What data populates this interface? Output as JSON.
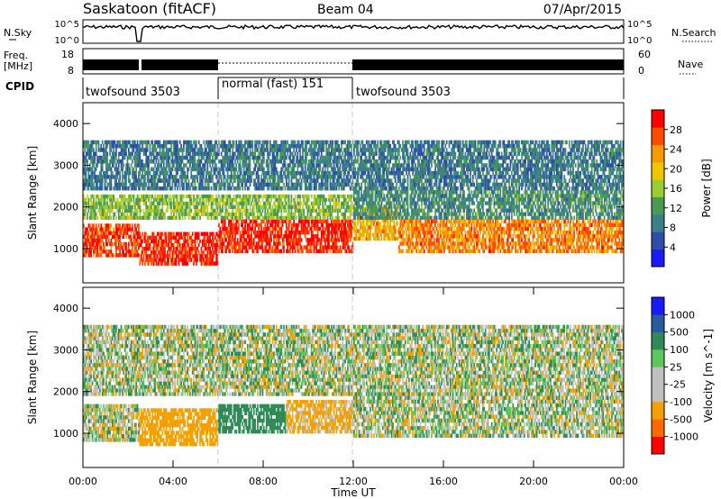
{
  "header": {
    "station": "Saskatoon (fitACF)",
    "beam": "Beam 04",
    "date": "07/Apr/2015"
  },
  "strips": {
    "noise": {
      "left_label": "N.Sky",
      "right_label": "N.Search",
      "left_ticks": [
        "10^5",
        "10^0"
      ],
      "right_ticks": [
        "10^5",
        "10^0"
      ]
    },
    "freq": {
      "left_label_1": "Freq.",
      "left_label_2": "[MHz]",
      "left_ticks": [
        "18",
        "8"
      ],
      "right_label": "Nave",
      "right_ticks": [
        "60",
        "0"
      ]
    },
    "cpid": {
      "label": "CPID",
      "segments": [
        {
          "text": "twofsound 3503",
          "start": 0.0,
          "end": 6.0
        },
        {
          "text": "normal (fast) 151",
          "start": 6.0,
          "end": 12.0
        },
        {
          "text": "twofsound 3503",
          "start": 12.0,
          "end": 24.0
        }
      ]
    }
  },
  "chart_data": [
    {
      "type": "heatmap",
      "title": "",
      "xlabel": "",
      "ylabel": "Slant Range [km]",
      "quantity": "Power",
      "colorbar_label": "Power [dB]",
      "colorbar_ticks": [
        "4",
        "8",
        "12",
        "16",
        "20",
        "24",
        "28"
      ],
      "colorbar_range": [
        0,
        30
      ],
      "colorbar_colors": [
        "#1a1aff",
        "#2e4fa8",
        "#3b7f8a",
        "#4a9a55",
        "#9acd32",
        "#f2c300",
        "#f59a00",
        "#ff4a00",
        "#ff0000"
      ],
      "ylim": [
        180,
        4500
      ],
      "xlim": [
        0,
        24
      ],
      "y_ticks": [
        1000,
        2000,
        3000,
        4000
      ],
      "bands": [
        {
          "t0": 0.0,
          "t1": 2.5,
          "r0": 800,
          "r1": 1600,
          "power": 26
        },
        {
          "t0": 2.5,
          "t1": 6.0,
          "r0": 600,
          "r1": 1400,
          "power": 27
        },
        {
          "t0": 6.0,
          "t1": 12.0,
          "r0": 900,
          "r1": 1700,
          "power": 27
        },
        {
          "t0": 12.0,
          "t1": 14.0,
          "r0": 1200,
          "r1": 2000,
          "power": 20
        },
        {
          "t0": 14.0,
          "t1": 24.0,
          "r0": 900,
          "r1": 1700,
          "power": 23
        },
        {
          "t0": 0.0,
          "t1": 12.0,
          "r0": 1700,
          "r1": 2300,
          "power": 14
        },
        {
          "t0": 12.0,
          "t1": 24.0,
          "r0": 1700,
          "r1": 2400,
          "power": 10
        },
        {
          "t0": 0.0,
          "t1": 24.0,
          "r0": 2400,
          "r1": 3600,
          "power": 8
        }
      ]
    },
    {
      "type": "heatmap",
      "title": "",
      "xlabel": "Time UT",
      "ylabel": "Slant Range [km]",
      "quantity": "Velocity",
      "colorbar_label": "Velocity [m s^-1]",
      "colorbar_ticks": [
        "-1000",
        "-500",
        "-100",
        "-25",
        "25",
        "100",
        "500",
        "1000"
      ],
      "colorbar_range": [
        -1200,
        1200
      ],
      "colorbar_colors": [
        "#ff0000",
        "#ff6a00",
        "#f5a000",
        "#c0c0c0",
        "#c0c0c0",
        "#5ac85a",
        "#2e8b57",
        "#2a5a9e",
        "#1a1aff"
      ],
      "ylim": [
        180,
        4500
      ],
      "xlim": [
        0,
        24
      ],
      "y_ticks": [
        1000,
        2000,
        3000,
        4000
      ],
      "x_ticks": [
        "00:00",
        "04:00",
        "08:00",
        "12:00",
        "16:00",
        "20:00",
        "00:00"
      ],
      "bands": [
        {
          "t0": 0.0,
          "t1": 2.5,
          "r0": 800,
          "r1": 1700,
          "velocity": -20
        },
        {
          "t0": 2.5,
          "t1": 6.0,
          "r0": 700,
          "r1": 1600,
          "velocity": -300
        },
        {
          "t0": 6.0,
          "t1": 9.0,
          "r0": 1000,
          "r1": 1700,
          "velocity": 300
        },
        {
          "t0": 9.0,
          "t1": 12.0,
          "r0": 1000,
          "r1": 1800,
          "velocity": -200
        },
        {
          "t0": 12.0,
          "t1": 24.0,
          "r0": 900,
          "r1": 1900,
          "velocity": 0
        },
        {
          "t0": 0.0,
          "t1": 24.0,
          "r0": 1900,
          "r1": 2500,
          "velocity": 0
        },
        {
          "t0": 0.0,
          "t1": 24.0,
          "r0": 2500,
          "r1": 3600,
          "velocity": 10
        }
      ]
    }
  ]
}
